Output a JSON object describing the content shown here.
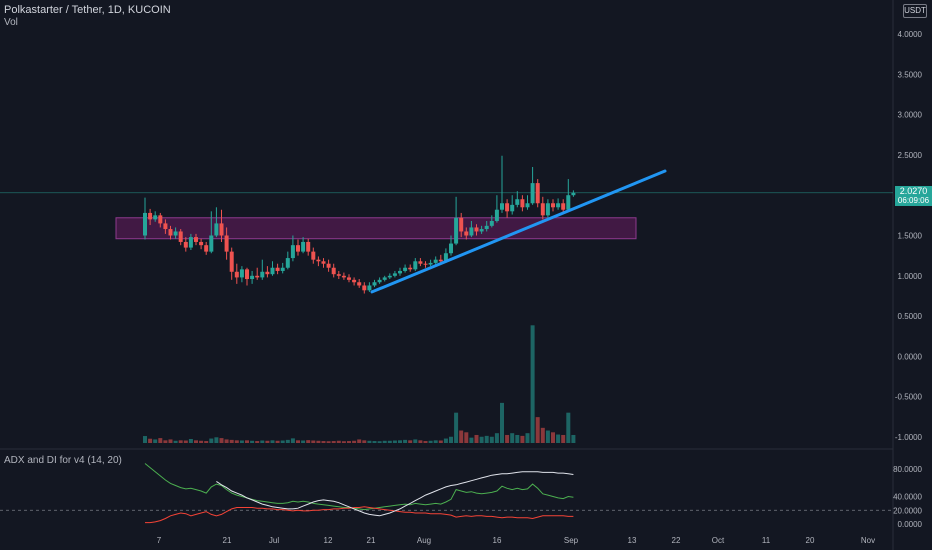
{
  "header": {
    "symbol_title": "Polkastarter / Tether, 1D, KUCOIN",
    "volume_label": "Vol",
    "indicator_label": "ADX and DI for v4 (14, 20)",
    "currency": "USDT"
  },
  "last_price": {
    "value": "2.0270",
    "countdown": "06:09:06"
  },
  "colors": {
    "background": "#131722",
    "up": "#26a69a",
    "down": "#ef5350",
    "trendline": "#2196f3",
    "zone_fill": "#4a1a4a",
    "zone_border": "#8e3a8e",
    "adx": "#e0e3eb",
    "di_plus": "#4caf50",
    "di_minus": "#f44336"
  },
  "chart_data": {
    "type": "candlestick",
    "ylim": [
      -1.1,
      4.2
    ],
    "price_ticks": [
      "4.0000",
      "3.5000",
      "3.0000",
      "2.5000",
      "2.0000",
      "1.5000",
      "1.0000",
      "0.5000",
      "0.0000",
      "-0.5000",
      "-1.0000"
    ],
    "x_ticks": [
      "7",
      "21",
      "Jul",
      "12",
      "21",
      "Aug",
      "16",
      "Sep",
      "13",
      "22",
      "Oct",
      "11",
      "20",
      "Nov"
    ],
    "candles": [
      [
        1.5,
        1.78,
        1.97,
        1.45
      ],
      [
        1.78,
        1.7,
        1.83,
        1.63
      ],
      [
        1.7,
        1.75,
        1.8,
        1.67
      ],
      [
        1.75,
        1.65,
        1.78,
        1.6
      ],
      [
        1.65,
        1.58,
        1.7,
        1.52
      ],
      [
        1.58,
        1.5,
        1.62,
        1.45
      ],
      [
        1.5,
        1.55,
        1.6,
        1.46
      ],
      [
        1.55,
        1.42,
        1.58,
        1.38
      ],
      [
        1.42,
        1.35,
        1.48,
        1.3
      ],
      [
        1.35,
        1.48,
        1.52,
        1.32
      ],
      [
        1.48,
        1.42,
        1.52,
        1.38
      ],
      [
        1.42,
        1.38,
        1.46,
        1.33
      ],
      [
        1.38,
        1.3,
        1.42,
        1.26
      ],
      [
        1.3,
        1.5,
        1.8,
        1.28
      ],
      [
        1.5,
        1.65,
        1.85,
        1.48
      ],
      [
        1.65,
        1.5,
        1.82,
        1.42
      ],
      [
        1.5,
        1.3,
        1.6,
        1.2
      ],
      [
        1.3,
        1.05,
        1.35,
        0.95
      ],
      [
        1.05,
        0.98,
        1.15,
        0.9
      ],
      [
        0.98,
        1.08,
        1.12,
        0.92
      ],
      [
        1.08,
        0.96,
        1.1,
        0.88
      ],
      [
        0.96,
        1.0,
        1.06,
        0.9
      ],
      [
        1.0,
        0.98,
        1.1,
        0.95
      ],
      [
        0.98,
        1.05,
        1.2,
        0.95
      ],
      [
        1.05,
        1.02,
        1.12,
        0.98
      ],
      [
        1.02,
        1.1,
        1.18,
        1.0
      ],
      [
        1.1,
        1.06,
        1.15,
        1.02
      ],
      [
        1.06,
        1.1,
        1.16,
        1.03
      ],
      [
        1.1,
        1.22,
        1.3,
        1.08
      ],
      [
        1.22,
        1.38,
        1.5,
        1.18
      ],
      [
        1.38,
        1.3,
        1.45,
        1.25
      ],
      [
        1.3,
        1.42,
        1.48,
        1.28
      ],
      [
        1.42,
        1.3,
        1.46,
        1.25
      ],
      [
        1.3,
        1.2,
        1.35,
        1.15
      ],
      [
        1.2,
        1.18,
        1.24,
        1.12
      ],
      [
        1.18,
        1.15,
        1.22,
        1.1
      ],
      [
        1.15,
        1.1,
        1.2,
        1.05
      ],
      [
        1.1,
        1.02,
        1.15,
        0.98
      ],
      [
        1.02,
        1.0,
        1.06,
        0.96
      ],
      [
        1.0,
        0.98,
        1.04,
        0.95
      ],
      [
        0.98,
        0.95,
        1.02,
        0.92
      ],
      [
        0.95,
        0.92,
        0.98,
        0.88
      ],
      [
        0.92,
        0.88,
        0.96,
        0.85
      ],
      [
        0.88,
        0.82,
        0.92,
        0.78
      ],
      [
        0.82,
        0.88,
        0.92,
        0.8
      ],
      [
        0.88,
        0.92,
        0.95,
        0.86
      ],
      [
        0.92,
        0.95,
        0.98,
        0.9
      ],
      [
        0.95,
        0.98,
        1.0,
        0.93
      ],
      [
        0.98,
        1.0,
        1.03,
        0.96
      ],
      [
        1.0,
        1.03,
        1.06,
        0.98
      ],
      [
        1.03,
        1.06,
        1.1,
        1.0
      ],
      [
        1.06,
        1.1,
        1.14,
        1.04
      ],
      [
        1.1,
        1.08,
        1.14,
        1.05
      ],
      [
        1.08,
        1.18,
        1.22,
        1.06
      ],
      [
        1.18,
        1.15,
        1.22,
        1.12
      ],
      [
        1.15,
        1.14,
        1.18,
        1.1
      ],
      [
        1.14,
        1.16,
        1.2,
        1.12
      ],
      [
        1.16,
        1.2,
        1.24,
        1.14
      ],
      [
        1.2,
        1.18,
        1.26,
        1.15
      ],
      [
        1.18,
        1.28,
        1.34,
        1.16
      ],
      [
        1.28,
        1.4,
        1.5,
        1.25
      ],
      [
        1.4,
        1.72,
        1.98,
        1.38
      ],
      [
        1.72,
        1.55,
        1.78,
        1.48
      ],
      [
        1.55,
        1.5,
        1.6,
        1.45
      ],
      [
        1.5,
        1.6,
        1.68,
        1.48
      ],
      [
        1.6,
        1.55,
        1.64,
        1.5
      ],
      [
        1.55,
        1.58,
        1.62,
        1.52
      ],
      [
        1.58,
        1.62,
        1.68,
        1.55
      ],
      [
        1.62,
        1.68,
        1.75,
        1.6
      ],
      [
        1.68,
        1.82,
        2.0,
        1.66
      ],
      [
        1.82,
        1.9,
        2.49,
        1.78
      ],
      [
        1.9,
        1.8,
        1.95,
        1.72
      ],
      [
        1.8,
        1.88,
        2.0,
        1.76
      ],
      [
        1.88,
        1.95,
        2.05,
        1.85
      ],
      [
        1.95,
        1.85,
        2.0,
        1.8
      ],
      [
        1.85,
        1.9,
        2.0,
        1.82
      ],
      [
        1.9,
        2.15,
        2.35,
        1.88
      ],
      [
        2.15,
        1.9,
        2.2,
        1.85
      ],
      [
        1.9,
        1.75,
        1.98,
        1.7
      ],
      [
        1.75,
        1.9,
        1.95,
        1.72
      ],
      [
        1.9,
        1.85,
        1.95,
        1.8
      ],
      [
        1.85,
        1.9,
        1.96,
        1.82
      ],
      [
        1.9,
        1.82,
        1.95,
        1.78
      ],
      [
        1.82,
        2.0,
        2.2,
        1.8
      ],
      [
        2.0,
        2.03,
        2.06,
        1.98
      ]
    ],
    "volume_scale": 1200,
    "volumes": [
      78,
      48,
      40,
      55,
      30,
      40,
      25,
      30,
      28,
      45,
      30,
      25,
      22,
      50,
      64,
      55,
      40,
      35,
      30,
      28,
      30,
      25,
      22,
      28,
      25,
      30,
      25,
      28,
      35,
      52,
      30,
      28,
      32,
      28,
      25,
      22,
      20,
      22,
      25,
      20,
      22,
      25,
      40,
      30,
      25,
      22,
      20,
      25,
      25,
      28,
      30,
      35,
      30,
      40,
      30,
      22,
      25,
      30,
      28,
      50,
      70,
      340,
      140,
      120,
      60,
      90,
      70,
      80,
      70,
      110,
      450,
      90,
      110,
      90,
      80,
      110,
      1320,
      290,
      170,
      140,
      120,
      95,
      90,
      340,
      90
    ],
    "adx_ylim": [
      -5,
      100
    ],
    "adx_ticks": [
      "80.0000",
      "40.0000",
      "20.0000",
      "0.0000"
    ],
    "adx_threshold": 20,
    "di_plus": [
      88,
      82,
      76,
      70,
      64,
      59,
      56,
      53,
      51,
      52,
      50,
      48,
      45,
      54,
      58,
      56,
      50,
      45,
      42,
      40,
      38,
      36,
      34,
      33,
      32,
      31,
      30,
      30,
      31,
      33,
      32,
      33,
      32,
      30,
      29,
      28,
      27,
      26,
      25,
      24,
      24,
      23,
      22,
      21,
      22,
      23,
      24,
      25,
      26,
      27,
      28,
      29,
      28,
      30,
      29,
      28,
      29,
      30,
      29,
      32,
      36,
      50,
      48,
      46,
      47,
      45,
      44,
      45,
      46,
      48,
      55,
      52,
      50,
      52,
      50,
      51,
      58,
      52,
      44,
      42,
      40,
      38,
      37,
      40,
      39
    ],
    "di_minus": [
      2,
      2,
      3,
      5,
      8,
      12,
      14,
      16,
      15,
      12,
      14,
      16,
      18,
      14,
      12,
      14,
      18,
      22,
      24,
      24,
      24,
      24,
      23,
      23,
      22,
      22,
      21,
      21,
      20,
      19,
      20,
      19,
      19,
      20,
      20,
      21,
      21,
      22,
      22,
      23,
      23,
      24,
      24,
      25,
      24,
      23,
      22,
      21,
      20,
      19,
      18,
      17,
      17,
      16,
      16,
      16,
      15,
      15,
      15,
      14,
      13,
      10,
      11,
      12,
      11,
      12,
      12,
      11,
      11,
      10,
      9,
      10,
      10,
      9,
      9,
      9,
      8,
      10,
      12,
      12,
      12,
      12,
      12,
      11,
      11
    ],
    "adx": [
      null,
      null,
      null,
      null,
      null,
      null,
      null,
      null,
      null,
      null,
      null,
      null,
      null,
      null,
      62,
      57,
      53,
      48,
      45,
      42,
      38,
      35,
      32,
      29,
      27,
      25,
      24,
      23,
      22,
      22,
      23,
      26,
      29,
      32,
      34,
      35,
      34,
      33,
      31,
      28,
      25,
      22,
      19,
      16,
      14,
      13,
      12,
      14,
      16,
      19,
      22,
      26,
      30,
      34,
      38,
      42,
      45,
      48,
      51,
      54,
      56,
      57,
      59,
      61,
      63,
      65,
      67,
      69,
      71,
      72,
      73,
      73,
      74,
      75,
      76,
      76,
      76,
      76,
      75,
      75,
      75,
      74,
      74,
      73,
      72
    ],
    "support_zone": {
      "upper": 1.72,
      "lower": 1.46
    },
    "trendline": {
      "start": 0.8,
      "end": 2.3
    }
  }
}
